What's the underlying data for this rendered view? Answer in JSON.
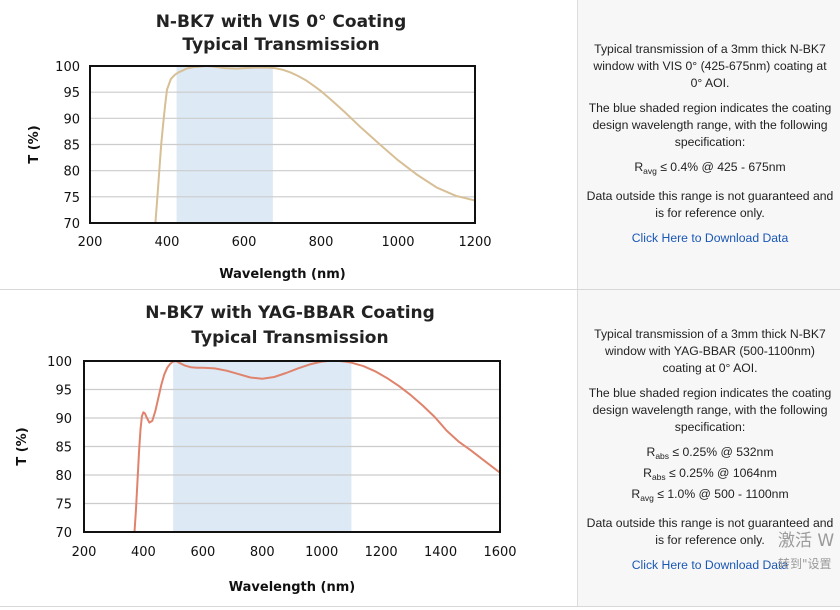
{
  "chart_data": [
    {
      "type": "line",
      "title": "N-BK7 with VIS 0° Coating",
      "subtitle": "Typical Transmission",
      "xlabel": "Wavelength (nm)",
      "ylabel": "T (%)",
      "xlim": [
        200,
        1200
      ],
      "ylim": [
        70,
        100
      ],
      "xticks": [
        "200",
        "400",
        "600",
        "800",
        "1000",
        "1200"
      ],
      "yticks": [
        "100",
        "95",
        "90",
        "85",
        "80",
        "75",
        "70"
      ],
      "grid": true,
      "shaded_range": [
        425,
        675
      ],
      "shade_color": "#dde9f5",
      "line_color": "#d7bf96",
      "series": [
        {
          "x": [
            370,
            375,
            380,
            385,
            390,
            395,
            400,
            410,
            420,
            430,
            440,
            450,
            470,
            490,
            500,
            520,
            550,
            580,
            600,
            630,
            660,
            680,
            700,
            720,
            740,
            760,
            780,
            800,
            830,
            860,
            900,
            950,
            1000,
            1050,
            1100,
            1150,
            1200
          ],
          "y": [
            70,
            75,
            80,
            85,
            89,
            92.5,
            95.5,
            97.5,
            98.3,
            98.8,
            99.1,
            99.5,
            99.8,
            99.9,
            100,
            99.9,
            99.6,
            99.5,
            99.6,
            99.7,
            99.7,
            99.6,
            99.3,
            98.8,
            98.1,
            97.3,
            96.3,
            95.2,
            93.3,
            91.3,
            88.5,
            85.2,
            82,
            79.2,
            76.8,
            75.2,
            74.3
          ]
        }
      ]
    },
    {
      "type": "line",
      "title": "N-BK7 with YAG-BBAR Coating",
      "subtitle": "Typical Transmission",
      "xlabel": "Wavelength (nm)",
      "ylabel": "T (%)",
      "xlim": [
        200,
        1600
      ],
      "ylim": [
        70,
        100
      ],
      "xticks": [
        "200",
        "400",
        "600",
        "800",
        "1000",
        "1200",
        "1400",
        "1600"
      ],
      "yticks": [
        "100",
        "95",
        "90",
        "85",
        "80",
        "75",
        "70"
      ],
      "grid": true,
      "shaded_range": [
        500,
        1100
      ],
      "shade_color": "#dde9f5",
      "line_color": "#e0836c",
      "series": [
        {
          "x": [
            370,
            375,
            380,
            385,
            390,
            395,
            400,
            405,
            410,
            420,
            430,
            440,
            450,
            460,
            470,
            480,
            490,
            500,
            510,
            520,
            540,
            560,
            580,
            600,
            640,
            680,
            720,
            760,
            800,
            840,
            880,
            920,
            960,
            1000,
            1020,
            1040,
            1060,
            1080,
            1100,
            1140,
            1180,
            1220,
            1260,
            1300,
            1340,
            1380,
            1400,
            1420,
            1460,
            1500,
            1550,
            1600
          ],
          "y": [
            70,
            74,
            79,
            84,
            88,
            90.3,
            91,
            90.8,
            90.2,
            89.2,
            89.5,
            91.2,
            93.5,
            95.8,
            97.6,
            98.8,
            99.5,
            99.9,
            100,
            99.7,
            99.2,
            98.9,
            98.8,
            98.8,
            98.7,
            98.3,
            97.7,
            97.1,
            96.9,
            97.2,
            97.9,
            98.7,
            99.4,
            99.9,
            100,
            100,
            100,
            99.9,
            99.7,
            99.1,
            98.2,
            97,
            95.6,
            94,
            92.2,
            90.2,
            89,
            87.8,
            85.9,
            84.4,
            82.4,
            80.4
          ]
        }
      ]
    }
  ],
  "panels": [
    {
      "desc_lines": [
        "Typical transmission of a 3mm thick N-BK7 window with VIS 0° (425-675nm) coating at 0° AOI."
      ],
      "shade_lines": [
        "The blue shaded region indicates the coating design wavelength range, with the following specification:"
      ],
      "specs": [
        {
          "sym": "R",
          "sub": "avg",
          "text": " ≤ 0.4% @ 425 - 675nm"
        }
      ],
      "note": "Data outside this range is not guaranteed and is for reference only.",
      "link": "Click Here to Download Data"
    },
    {
      "desc_lines": [
        "Typical transmission of a 3mm thick N-BK7 window with YAG-BBAR (500-1100nm) coating at 0° AOI."
      ],
      "shade_lines": [
        "The blue shaded region indicates the coating design wavelength range, with the following specification:"
      ],
      "specs": [
        {
          "sym": "R",
          "sub": "abs",
          "text": " ≤ 0.25% @ 532nm"
        },
        {
          "sym": "R",
          "sub": "abs",
          "text": " ≤ 0.25% @ 1064nm"
        },
        {
          "sym": "R",
          "sub": "avg",
          "text": " ≤ 1.0% @ 500 - 1100nm"
        }
      ],
      "note": "Data outside this range is not guaranteed and is for reference only.",
      "link": "Click Here to Download Data"
    }
  ],
  "watermark": {
    "line1": "激活 W",
    "line2": "转到\"设置"
  }
}
